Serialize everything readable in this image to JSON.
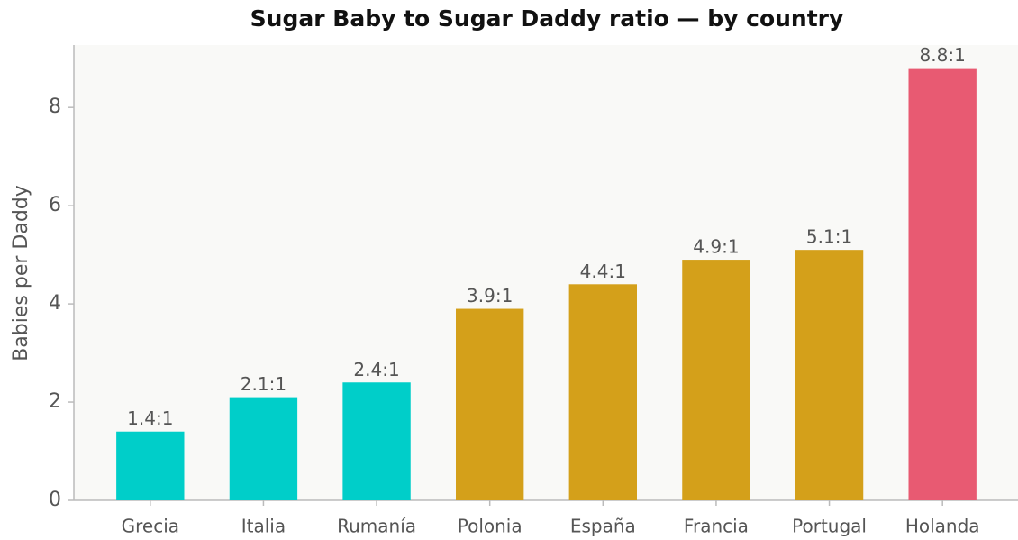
{
  "chart_data": {
    "type": "bar",
    "title": "Sugar Baby to Sugar Daddy ratio — by country",
    "y_label": "Babies per Daddy",
    "categories": [
      "Grecia",
      "Italia",
      "Rumanía",
      "Polonia",
      "España",
      "Francia",
      "Portugal",
      "Holanda"
    ],
    "values": [
      1.4,
      2.1,
      2.4,
      3.9,
      4.4,
      4.9,
      5.1,
      8.8
    ],
    "value_labels": [
      "1.4:1",
      "2.1:1",
      "2.4:1",
      "3.9:1",
      "4.4:1",
      "4.9:1",
      "5.1:1",
      "8.8:1"
    ],
    "colors": [
      "#00cec9",
      "#00cec9",
      "#00cec9",
      "#d4a01a",
      "#d4a01a",
      "#d4a01a",
      "#d4a01a",
      "#e85a72"
    ],
    "ylim": [
      0,
      9.27
    ],
    "yticks": [
      0,
      2,
      4,
      6,
      8
    ],
    "grid": false
  }
}
